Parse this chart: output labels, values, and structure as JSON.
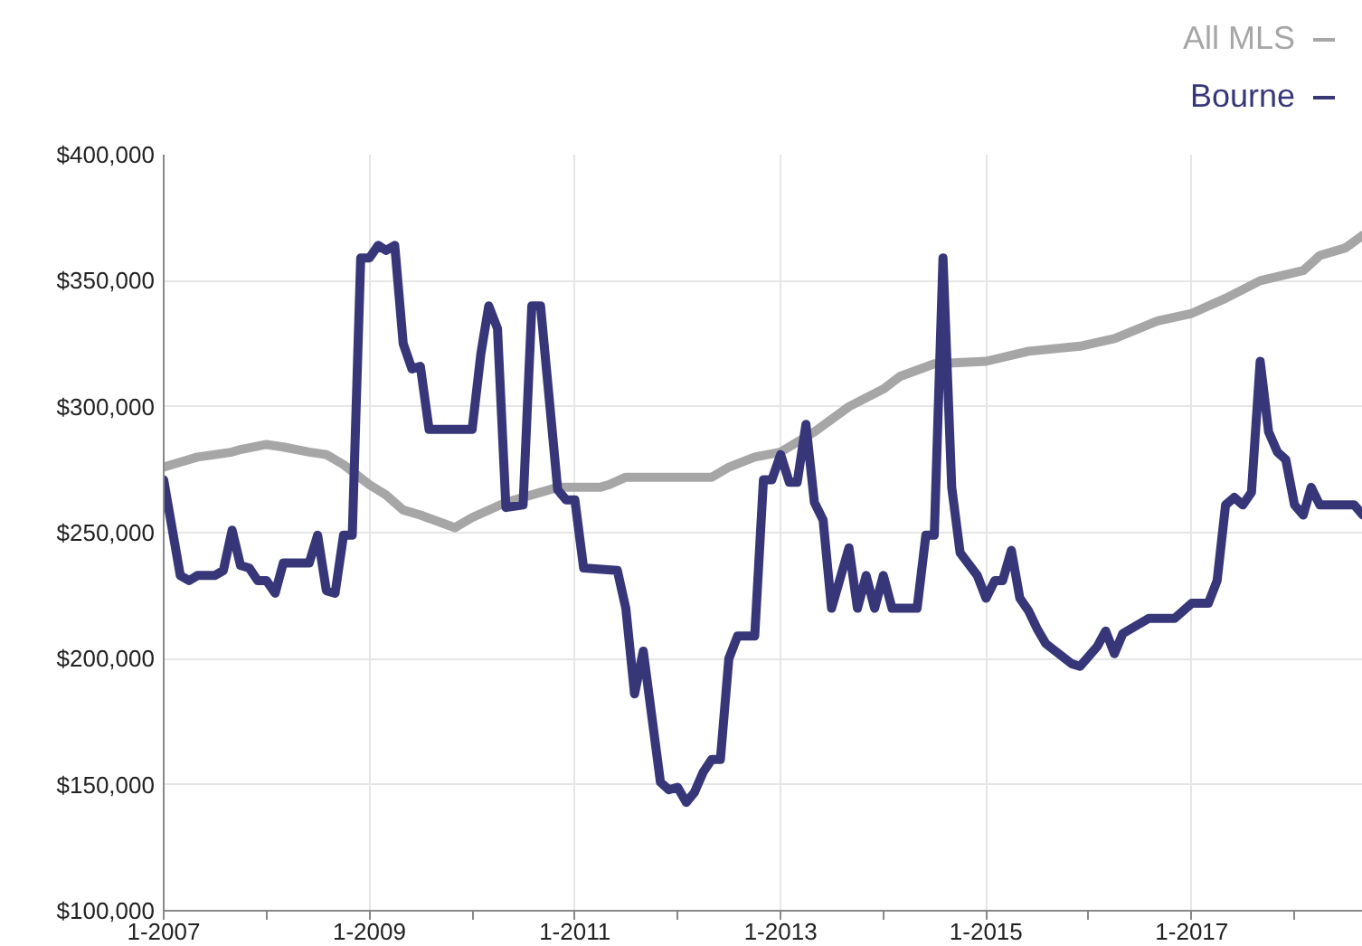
{
  "chart_data": {
    "type": "line",
    "xlim": [
      "2007-01",
      "2018-09"
    ],
    "ylim": [
      100000,
      400000
    ],
    "xticks": [
      {
        "value": "2007-01",
        "label": "1-2007"
      },
      {
        "value": "2008-01",
        "label": null
      },
      {
        "value": "2009-01",
        "label": "1-2009"
      },
      {
        "value": "2010-01",
        "label": null
      },
      {
        "value": "2011-01",
        "label": "1-2011"
      },
      {
        "value": "2012-01",
        "label": null
      },
      {
        "value": "2013-01",
        "label": "1-2013"
      },
      {
        "value": "2014-01",
        "label": null
      },
      {
        "value": "2015-01",
        "label": "1-2015"
      },
      {
        "value": "2016-01",
        "label": null
      },
      {
        "value": "2017-01",
        "label": "1-2017"
      },
      {
        "value": "2018-01",
        "label": null
      }
    ],
    "yticks": [
      {
        "value": 100000,
        "label": "$100,000"
      },
      {
        "value": 150000,
        "label": "$150,000"
      },
      {
        "value": 200000,
        "label": "$200,000"
      },
      {
        "value": 250000,
        "label": "$250,000"
      },
      {
        "value": 300000,
        "label": "$300,000"
      },
      {
        "value": 350000,
        "label": "$350,000"
      },
      {
        "value": 400000,
        "label": "$400,000"
      }
    ],
    "grid": true,
    "legend": "top right",
    "line_style": "solid",
    "marker": "none",
    "series": [
      {
        "name": "All MLS",
        "color": "#a6a6a6",
        "x": [
          "2007-01",
          "2007-03",
          "2007-05",
          "2007-09",
          "2007-10",
          "2008-01",
          "2008-03",
          "2008-06",
          "2008-08",
          "2008-10",
          "2009-01",
          "2009-03",
          "2009-05",
          "2009-07",
          "2009-11",
          "2010-01",
          "2010-05",
          "2010-09",
          "2010-11",
          "2011-04",
          "2011-05",
          "2011-07",
          "2012-02",
          "2012-05",
          "2012-07",
          "2012-10",
          "2013-01",
          "2013-05",
          "2013-09",
          "2014-01",
          "2014-03",
          "2014-07",
          "2015-01",
          "2015-06",
          "2015-12",
          "2016-04",
          "2016-09",
          "2017-01",
          "2017-05",
          "2017-09",
          "2018-02",
          "2018-04",
          "2018-07",
          "2018-09"
        ],
        "values": [
          276000,
          278000,
          280000,
          282000,
          283000,
          285000,
          284000,
          282000,
          281000,
          277000,
          269000,
          265000,
          259000,
          257000,
          252000,
          256000,
          262000,
          266000,
          268000,
          268000,
          269000,
          272000,
          272000,
          272000,
          276000,
          280000,
          282000,
          290000,
          300000,
          307000,
          312000,
          317000,
          318000,
          322000,
          324000,
          327000,
          334000,
          337000,
          343000,
          350000,
          354000,
          360000,
          363000,
          368000
        ]
      },
      {
        "name": "Bourne",
        "color": "#373679",
        "x": [
          "2007-01",
          "2007-03",
          "2007-04",
          "2007-05",
          "2007-07",
          "2007-08",
          "2007-09",
          "2007-10",
          "2007-11",
          "2007-12",
          "2008-01",
          "2008-02",
          "2008-03",
          "2008-06",
          "2008-07",
          "2008-08",
          "2008-09",
          "2008-10",
          "2008-11",
          "2008-12",
          "2009-01",
          "2009-02",
          "2009-03",
          "2009-04",
          "2009-05",
          "2009-06",
          "2009-07",
          "2009-08",
          "2010-01",
          "2010-02",
          "2010-03",
          "2010-04",
          "2010-05",
          "2010-07",
          "2010-08",
          "2010-09",
          "2010-11",
          "2010-12",
          "2011-01",
          "2011-02",
          "2011-06",
          "2011-07",
          "2011-08",
          "2011-09",
          "2011-11",
          "2011-12",
          "2012-01",
          "2012-02",
          "2012-03",
          "2012-04",
          "2012-05",
          "2012-06",
          "2012-07",
          "2012-08",
          "2012-10",
          "2012-11",
          "2012-12",
          "2013-01",
          "2013-02",
          "2013-03",
          "2013-04",
          "2013-05",
          "2013-06",
          "2013-07",
          "2013-09",
          "2013-10",
          "2013-11",
          "2013-12",
          "2014-01",
          "2014-02",
          "2014-05",
          "2014-06",
          "2014-07",
          "2014-08",
          "2014-09",
          "2014-10",
          "2014-12",
          "2015-01",
          "2015-02",
          "2015-03",
          "2015-04",
          "2015-05",
          "2015-06",
          "2015-07",
          "2015-08",
          "2015-11",
          "2015-12",
          "2016-02",
          "2016-03",
          "2016-04",
          "2016-05",
          "2016-08",
          "2016-11",
          "2017-01",
          "2017-03",
          "2017-04",
          "2017-05",
          "2017-06",
          "2017-07",
          "2017-08",
          "2017-09",
          "2017-10",
          "2017-11",
          "2017-12",
          "2018-01",
          "2018-02",
          "2018-03",
          "2018-04",
          "2018-08",
          "2018-09"
        ],
        "values": [
          271000,
          233000,
          231000,
          233000,
          233000,
          235000,
          251000,
          237000,
          236000,
          231000,
          231000,
          226000,
          238000,
          238000,
          249000,
          227000,
          226000,
          249000,
          249000,
          359000,
          359000,
          364000,
          362000,
          364000,
          325000,
          315000,
          316000,
          291000,
          291000,
          321000,
          340000,
          331000,
          260000,
          261000,
          340000,
          340000,
          267000,
          263000,
          263000,
          236000,
          235000,
          220000,
          186000,
          203000,
          151000,
          148000,
          149000,
          143000,
          147000,
          155000,
          160000,
          160000,
          200000,
          209000,
          209000,
          271000,
          271000,
          281000,
          270000,
          270000,
          293000,
          262000,
          255000,
          220000,
          244000,
          220000,
          233000,
          220000,
          233000,
          220000,
          220000,
          249000,
          249000,
          359000,
          268000,
          242000,
          233000,
          224000,
          231000,
          231000,
          243000,
          224000,
          219000,
          212000,
          206000,
          198000,
          197000,
          205000,
          211000,
          202000,
          210000,
          216000,
          216000,
          222000,
          222000,
          231000,
          261000,
          264000,
          261000,
          266000,
          318000,
          290000,
          282000,
          279000,
          261000,
          257000,
          268000,
          261000,
          261000,
          257000
        ]
      }
    ]
  }
}
